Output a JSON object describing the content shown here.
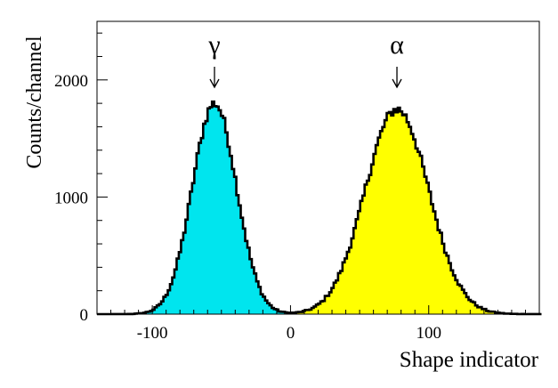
{
  "chart_data": {
    "type": "histogram",
    "xlabel": "Shape indicator",
    "ylabel": "Counts/channel",
    "xlim": [
      -140,
      180
    ],
    "ylim": [
      0,
      2500
    ],
    "xticks": [
      -100,
      0,
      100
    ],
    "xtick_labels": [
      "-100",
      "0",
      "100"
    ],
    "yticks": [
      0,
      1000,
      2000
    ],
    "ytick_labels": [
      "0",
      "1000",
      "2000"
    ],
    "grid": false,
    "legend": "none",
    "series": [
      {
        "name": "γ",
        "type": "gaussian",
        "mean": -55,
        "sigma": 16,
        "amplitude": 1800,
        "color": "#00e5ee"
      },
      {
        "name": "α",
        "type": "gaussian",
        "mean": 77,
        "sigma": 23,
        "amplitude": 1750,
        "color": "#ffff00"
      }
    ],
    "annotations": [
      {
        "text": "γ",
        "x": -55,
        "arrow": true
      },
      {
        "text": "α",
        "x": 77,
        "arrow": true
      }
    ]
  }
}
